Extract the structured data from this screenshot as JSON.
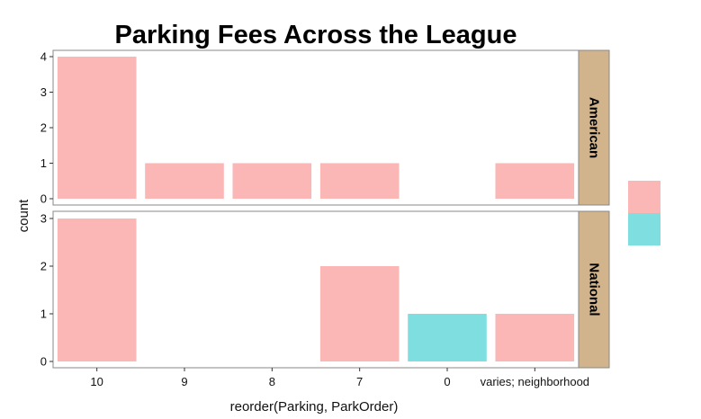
{
  "chart_data": {
    "type": "bar",
    "title": "Parking Fees Across the League",
    "xlabel": "reorder(Parking, ParkOrder)",
    "ylabel": "count",
    "categories": [
      "10",
      "9",
      "8",
      "7",
      "0",
      "varies; neighborhood"
    ],
    "facets": [
      {
        "label": "American",
        "ylim": [
          0,
          4
        ],
        "yticks": [
          0,
          1,
          2,
          3,
          4
        ],
        "bars": [
          {
            "category": "10",
            "value": 4,
            "color": "#fbb6b6"
          },
          {
            "category": "9",
            "value": 1,
            "color": "#fbb6b6"
          },
          {
            "category": "8",
            "value": 1,
            "color": "#fbb6b6"
          },
          {
            "category": "7",
            "value": 1,
            "color": "#fbb6b6"
          },
          {
            "category": "varies; neighborhood",
            "value": 1,
            "color": "#fbb6b6"
          }
        ]
      },
      {
        "label": "National",
        "ylim": [
          0,
          3
        ],
        "yticks": [
          0,
          1,
          2,
          3
        ],
        "bars": [
          {
            "category": "10",
            "value": 3,
            "color": "#fbb6b6"
          },
          {
            "category": "7",
            "value": 2,
            "color": "#fbb6b6"
          },
          {
            "category": "0",
            "value": 1,
            "color": "#7fdfe0"
          },
          {
            "category": "varies; neighborhood",
            "value": 1,
            "color": "#fbb6b6"
          }
        ]
      }
    ],
    "legend": {
      "placement": "right",
      "keys": [
        {
          "color": "#fbb6b6"
        },
        {
          "color": "#7fdfe0"
        }
      ]
    },
    "grid": false
  },
  "colors": {
    "strip_fill": "#d2b48c",
    "panel_border": "#888888"
  }
}
